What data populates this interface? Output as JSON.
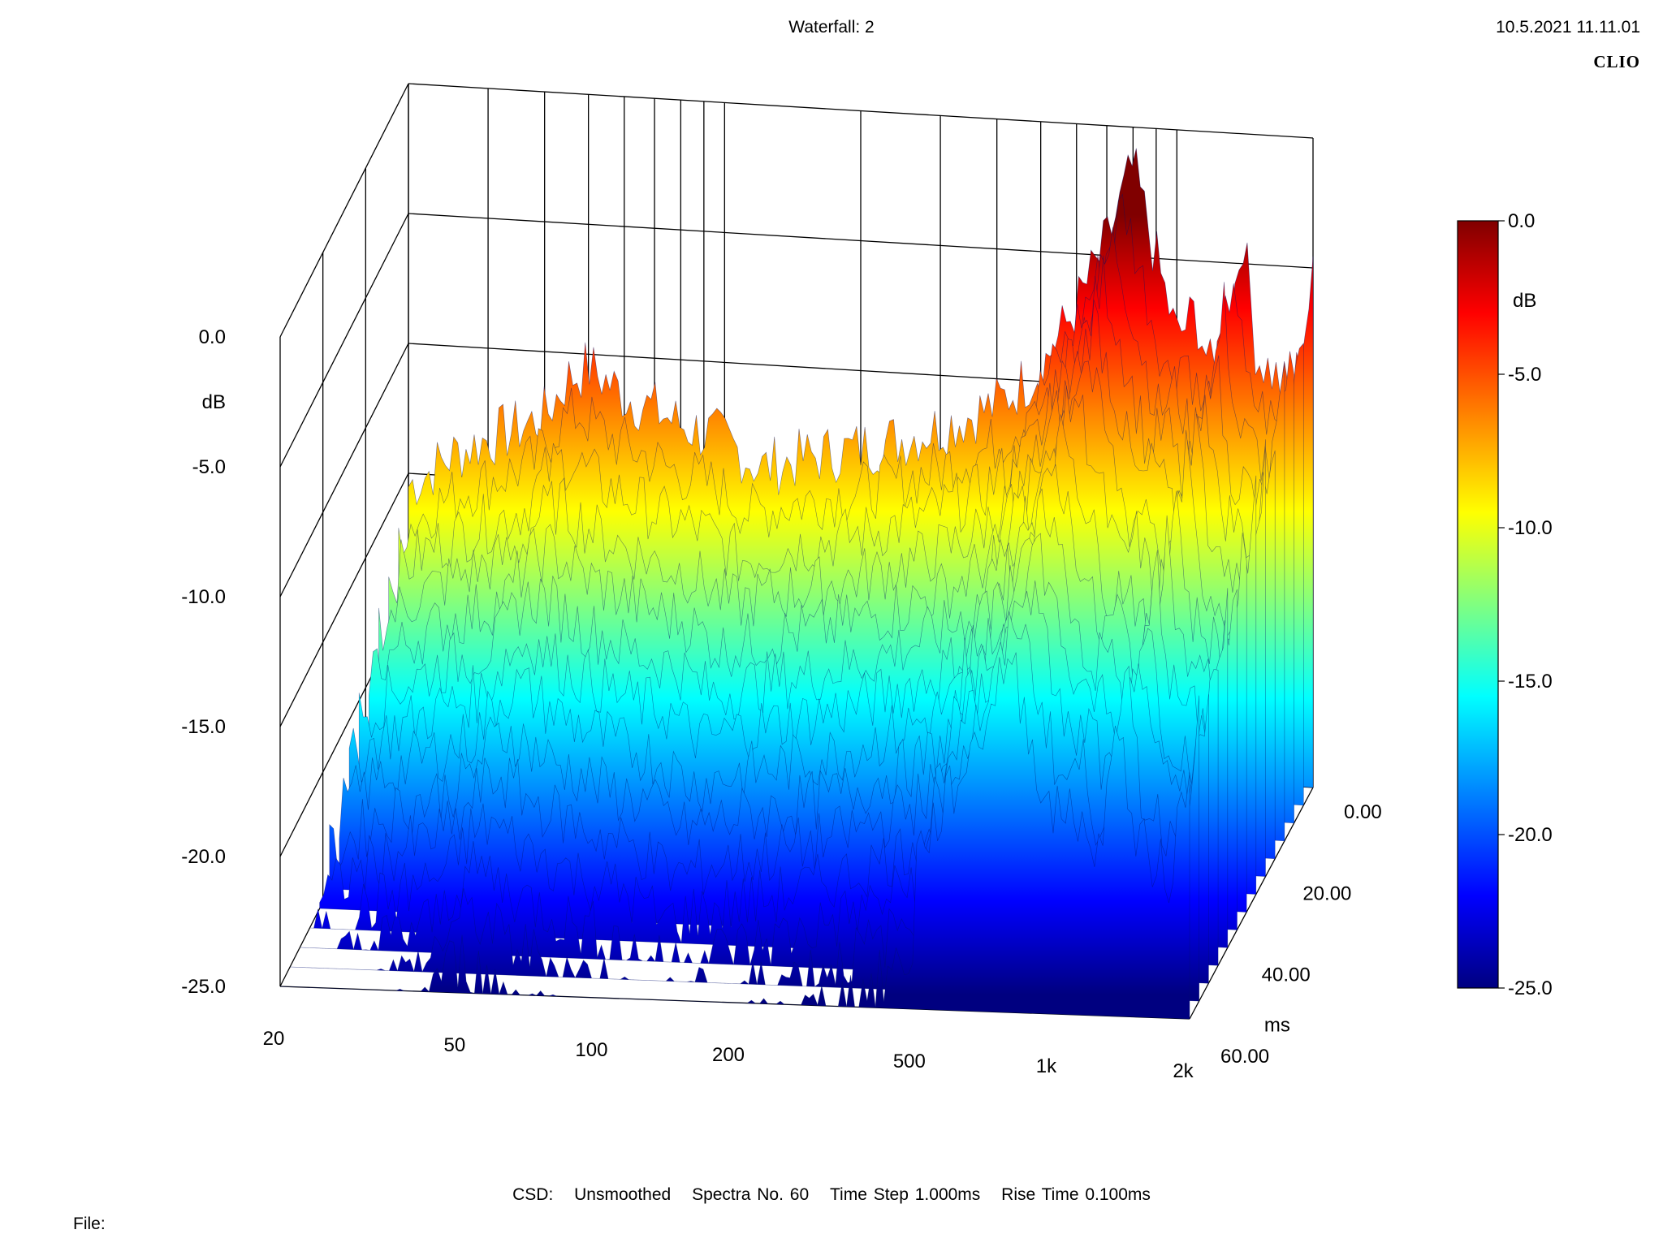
{
  "header": {
    "title": "Waterfall: 2",
    "datetime": "10.5.2021 11.11.01",
    "brand": "CLIO"
  },
  "footer": {
    "csd_label": "CSD:",
    "smoothing": "Unsmoothed",
    "spectra": "Spectra No. 60",
    "time_step": "Time Step 1.000ms",
    "rise_time": "Rise Time 0.100ms",
    "file_label": "File:"
  },
  "chart_data": {
    "type": "waterfall",
    "y_axis": {
      "label": "dB",
      "ticks": [
        "0.0",
        "-5.0",
        "-10.0",
        "-15.0",
        "-20.0",
        "-25.0"
      ],
      "range": [
        -25,
        0
      ]
    },
    "x_axis": {
      "scale": "log",
      "unit": "Hz",
      "ticks": [
        20,
        50,
        100,
        200,
        500,
        1000,
        2000
      ],
      "tick_labels": [
        "20",
        "50",
        "100",
        "200",
        "500",
        "1k",
        "2k"
      ],
      "range": [
        20,
        2000
      ]
    },
    "z_axis": {
      "label": "ms",
      "ticks": [
        "0.00",
        "20.00",
        "40.00",
        "60.00"
      ],
      "range": [
        0,
        60
      ]
    },
    "colorbar": {
      "label": "dB",
      "ticks": [
        "0.0",
        "-5.0",
        "-10.0",
        "-15.0",
        "-20.0",
        "-25.0"
      ],
      "range": [
        -25,
        0
      ],
      "colors": [
        "#800000",
        "#ff0000",
        "#ff8000",
        "#ffff00",
        "#80ff80",
        "#00ffff",
        "#0080ff",
        "#0000ff",
        "#000080"
      ]
    },
    "front_spectrum": {
      "description_only": false,
      "freq_hz": [
        20,
        25,
        30,
        35,
        40,
        45,
        50,
        60,
        70,
        80,
        100,
        120,
        150,
        200,
        250,
        300,
        400,
        500,
        600,
        700,
        800,
        900,
        1000,
        1100,
        1200,
        1300,
        1400,
        1500,
        1600,
        1700,
        1800,
        2000
      ],
      "level_db": [
        -15.5,
        -14.2,
        -13.5,
        -13.0,
        -12.5,
        -11.0,
        -10.5,
        -11.5,
        -12.0,
        -12.5,
        -13.0,
        -14.0,
        -13.5,
        -13.0,
        -12.5,
        -12.0,
        -11.0,
        -9.5,
        -7.0,
        -4.5,
        -1.5,
        -5.0,
        -8.0,
        -7.0,
        -9.5,
        -7.5,
        -3.8,
        -8.5,
        -9.0,
        -9.5,
        -10.0,
        -5.5
      ]
    }
  }
}
